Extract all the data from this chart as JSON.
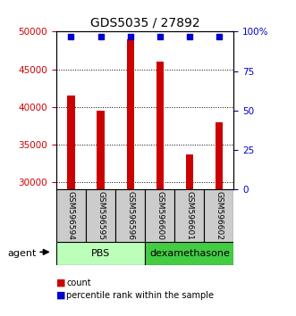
{
  "title": "GDS5035 / 27892",
  "categories": [
    "GSM596594",
    "GSM596595",
    "GSM596596",
    "GSM596600",
    "GSM596601",
    "GSM596602"
  ],
  "bar_values": [
    41500,
    39500,
    49000,
    46000,
    33700,
    38000
  ],
  "bar_color": "#cc0000",
  "dot_color": "#0000cc",
  "ylim_left": [
    29000,
    50000
  ],
  "ylim_right": [
    0,
    100
  ],
  "yticks_left": [
    30000,
    35000,
    40000,
    45000,
    50000
  ],
  "yticks_right": [
    0,
    25,
    50,
    75,
    100
  ],
  "yticklabels_right": [
    "0",
    "25",
    "50",
    "75",
    "100%"
  ],
  "ylabel_left_color": "#cc0000",
  "ylabel_right_color": "#0000cc",
  "groups": [
    {
      "label": "PBS",
      "indices": [
        0,
        1,
        2
      ],
      "color": "#bbffbb"
    },
    {
      "label": "dexamethasone",
      "indices": [
        3,
        4,
        5
      ],
      "color": "#44cc44"
    }
  ],
  "agent_label": "agent",
  "legend_count_label": "count",
  "legend_percentile_label": "percentile rank within the sample",
  "bar_width": 0.25,
  "sample_box_color": "#cccccc",
  "title_fontsize": 10
}
